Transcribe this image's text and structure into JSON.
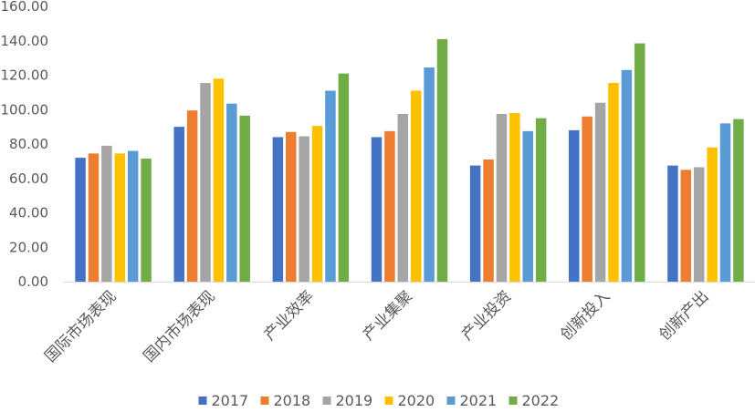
{
  "chart_data": {
    "type": "bar",
    "categories": [
      "国际市场表现",
      "国内市场表现",
      "产业效率",
      "产业集聚",
      "产业投资",
      "创新投入",
      "创新产出"
    ],
    "series": [
      {
        "name": "2017",
        "color": "#4472C4",
        "values": [
          72,
          90,
          84,
          84,
          67.5,
          88,
          67.5
        ]
      },
      {
        "name": "2018",
        "color": "#ED7D31",
        "values": [
          74.5,
          99.5,
          87,
          87.5,
          71,
          96,
          65
        ]
      },
      {
        "name": "2019",
        "color": "#A5A5A5",
        "values": [
          79,
          115.5,
          84.5,
          97.5,
          97.5,
          104,
          66.5
        ]
      },
      {
        "name": "2020",
        "color": "#FFC000",
        "values": [
          74.5,
          118,
          90.5,
          111,
          98,
          115.5,
          78
        ]
      },
      {
        "name": "2021",
        "color": "#5B9BD5",
        "values": [
          76,
          103.5,
          111,
          124.5,
          87.5,
          123,
          92
        ]
      },
      {
        "name": "2022",
        "color": "#70AD47",
        "values": [
          71.5,
          96.5,
          121,
          141,
          95,
          138.5,
          94.5
        ]
      }
    ],
    "yticks": [
      "0.00",
      "20.00",
      "40.00",
      "60.00",
      "80.00",
      "100.00",
      "120.00",
      "140.00",
      "160.00"
    ],
    "ylim": [
      0,
      160
    ],
    "title": "",
    "xlabel": "",
    "ylabel": "",
    "grid": false,
    "legend_position": "bottom"
  }
}
